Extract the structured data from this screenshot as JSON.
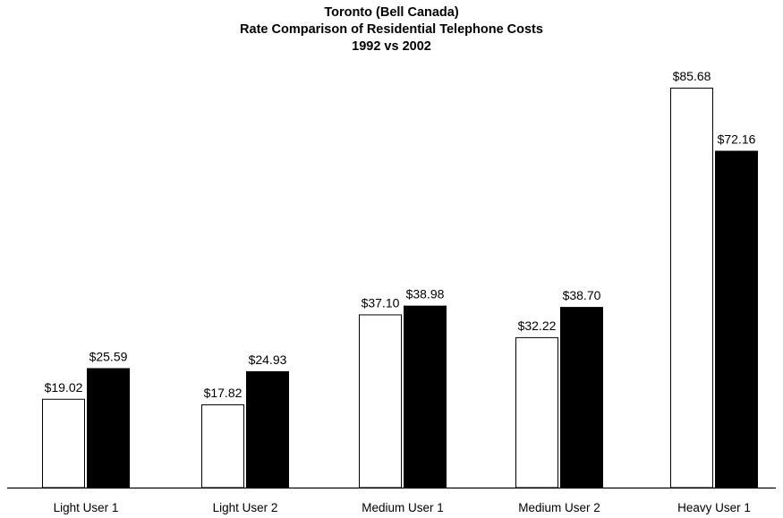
{
  "chart_data": {
    "type": "bar",
    "title": "Toronto (Bell Canada)",
    "subtitle": [
      "Rate Comparison of Residential Telephone Costs",
      "1992 vs 2002"
    ],
    "categories": [
      "Light User 1",
      "Light User 2",
      "Medium User 1",
      "Medium User 2",
      "Heavy User 1"
    ],
    "series": [
      {
        "color": "#ffffff",
        "values": [
          19.02,
          17.82,
          37.1,
          32.22,
          85.68
        ],
        "labels": [
          "$19.02",
          "$17.82",
          "$37.10",
          "$32.22",
          "$85.68"
        ]
      },
      {
        "color": "#000000",
        "values": [
          25.59,
          24.93,
          38.98,
          38.7,
          72.16
        ],
        "labels": [
          "$25.59",
          "$24.93",
          "$38.98",
          "$38.70",
          "$72.16"
        ]
      }
    ],
    "ylim": [
      0,
      100
    ],
    "grid": false,
    "legend": "none"
  }
}
